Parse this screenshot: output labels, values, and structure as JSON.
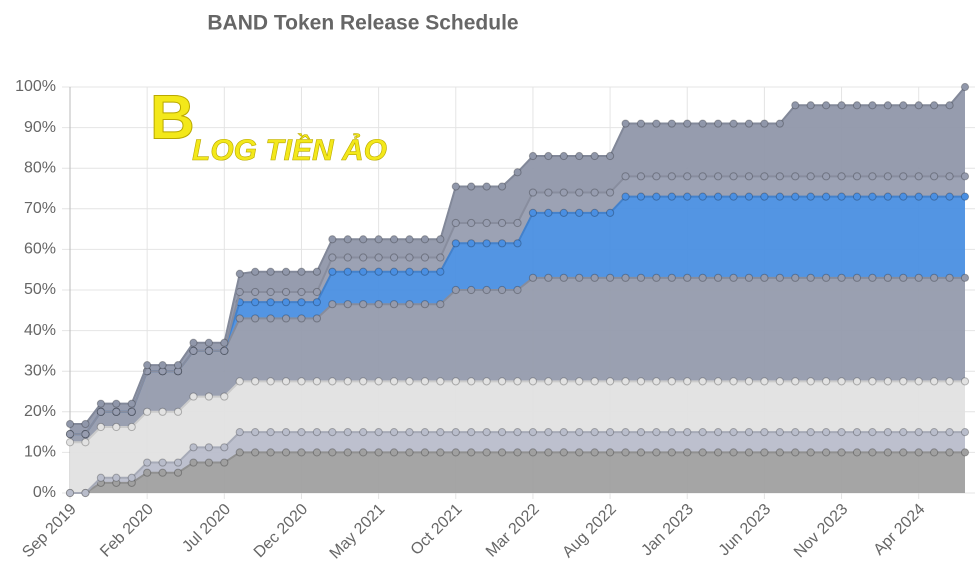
{
  "chart_data": {
    "type": "stacked-area",
    "title": "BAND Token Release Schedule",
    "watermark": "LOG TIỀN ẢO",
    "categories": [
      "Sep 2019",
      null,
      null,
      null,
      null,
      "Feb 2020",
      null,
      null,
      null,
      null,
      "Jul 2020",
      null,
      null,
      null,
      null,
      "Dec 2020",
      null,
      null,
      null,
      null,
      "May 2021",
      null,
      null,
      null,
      null,
      "Oct 2021",
      null,
      null,
      null,
      null,
      "Mar 2022",
      null,
      null,
      null,
      null,
      "Aug 2022",
      null,
      null,
      null,
      null,
      "Jan 2023",
      null,
      null,
      null,
      null,
      "Jun 2023",
      null,
      null,
      null,
      null,
      "Nov 2023",
      null,
      null,
      null,
      null,
      "Apr 2024",
      null,
      null,
      null
    ],
    "ylim": [
      0,
      100
    ],
    "yticks": [
      {
        "value": 0,
        "label": "0%"
      },
      {
        "value": 10,
        "label": "10%"
      },
      {
        "value": 20,
        "label": "20%"
      },
      {
        "value": 30,
        "label": "30%"
      },
      {
        "value": 40,
        "label": "40%"
      },
      {
        "value": 50,
        "label": "50%"
      },
      {
        "value": 60,
        "label": "60%"
      },
      {
        "value": 70,
        "label": "70%"
      },
      {
        "value": 80,
        "label": "80%"
      },
      {
        "value": 90,
        "label": "90%"
      },
      {
        "value": 100,
        "label": "100%"
      }
    ],
    "grid": true,
    "series": [
      {
        "color": "#a0a0a0",
        "values": [
          0,
          0,
          2.5,
          2.5,
          2.5,
          5,
          5,
          5,
          7.5,
          7.5,
          7.5,
          10,
          10,
          10,
          10,
          10,
          10,
          10,
          10,
          10,
          10,
          10,
          10,
          10,
          10,
          10,
          10,
          10,
          10,
          10,
          10,
          10,
          10,
          10,
          10,
          10,
          10,
          10,
          10,
          10,
          10,
          10,
          10,
          10,
          10,
          10,
          10,
          10,
          10,
          10,
          10,
          10,
          10,
          10,
          10,
          10,
          10,
          10,
          10
        ]
      },
      {
        "color": "#b9bdcb",
        "values": [
          0,
          0,
          1.25,
          1.25,
          1.25,
          2.5,
          2.5,
          2.5,
          3.75,
          3.75,
          3.75,
          5,
          5,
          5,
          5,
          5,
          5,
          5,
          5,
          5,
          5,
          5,
          5,
          5,
          5,
          5,
          5,
          5,
          5,
          5,
          5,
          5,
          5,
          5,
          5,
          5,
          5,
          5,
          5,
          5,
          5,
          5,
          5,
          5,
          5,
          5,
          5,
          5,
          5,
          5,
          5,
          5,
          5,
          5,
          5,
          5,
          5,
          5,
          5
        ]
      },
      {
        "color": "#e2e2e2",
        "values": [
          12.5,
          12.5,
          12.5,
          12.5,
          12.5,
          12.5,
          12.5,
          12.5,
          12.5,
          12.5,
          12.5,
          12.5,
          12.5,
          12.5,
          12.5,
          12.5,
          12.5,
          12.5,
          12.5,
          12.5,
          12.5,
          12.5,
          12.5,
          12.5,
          12.5,
          12.5,
          12.5,
          12.5,
          12.5,
          12.5,
          12.5,
          12.5,
          12.5,
          12.5,
          12.5,
          12.5,
          12.5,
          12.5,
          12.5,
          12.5,
          12.5,
          12.5,
          12.5,
          12.5,
          12.5,
          12.5,
          12.5,
          12.5,
          12.5,
          12.5,
          12.5,
          12.5,
          12.5,
          12.5,
          12.5,
          12.5,
          12.5,
          12.5,
          12.5
        ]
      },
      {
        "color": "#959bad",
        "values": [
          2,
          2,
          3.75,
          3.75,
          3.75,
          10,
          10,
          10,
          11.25,
          11.25,
          11.25,
          15.5,
          15.5,
          15.5,
          15.5,
          15.5,
          15.5,
          19,
          19,
          19,
          19,
          19,
          19,
          19,
          19,
          22.5,
          22.5,
          22.5,
          22.5,
          22.5,
          25.5,
          25.5,
          25.5,
          25.5,
          25.5,
          25.5,
          25.5,
          25.5,
          25.5,
          25.5,
          25.5,
          25.5,
          25.5,
          25.5,
          25.5,
          25.5,
          25.5,
          25.5,
          25.5,
          25.5,
          25.5,
          25.5,
          25.5,
          25.5,
          25.5,
          25.5,
          25.5,
          25.5,
          25.5
        ]
      },
      {
        "color": "#4a8fe2",
        "values": [
          0,
          0,
          0,
          0,
          0,
          0,
          0,
          0,
          0,
          0,
          0,
          4,
          4,
          4,
          4,
          4,
          4,
          8,
          8,
          8,
          8,
          8,
          8,
          8,
          8,
          11.5,
          11.5,
          11.5,
          11.5,
          11.5,
          16,
          16,
          16,
          16,
          16,
          16,
          20,
          20,
          20,
          20,
          20,
          20,
          20,
          20,
          20,
          20,
          20,
          20,
          20,
          20,
          20,
          20,
          20,
          20,
          20,
          20,
          20,
          20,
          20
        ]
      },
      {
        "color": "#979db0",
        "values": [
          0,
          0,
          0,
          0,
          0,
          0,
          0,
          0,
          0,
          0,
          0,
          2.5,
          2.5,
          2.5,
          2.5,
          2.5,
          2.5,
          3.5,
          3.5,
          3.5,
          3.5,
          3.5,
          3.5,
          3.5,
          3.5,
          5,
          5,
          5,
          5,
          5,
          5,
          5,
          5,
          5,
          5,
          5,
          5,
          5,
          5,
          5,
          5,
          5,
          5,
          5,
          5,
          5,
          5,
          5,
          5,
          5,
          5,
          5,
          5,
          5,
          5,
          5,
          5,
          5,
          5
        ]
      },
      {
        "color": "#9097aa",
        "values": [
          2.5,
          2.5,
          2,
          2,
          2,
          1.5,
          1.5,
          1.5,
          2,
          2,
          2,
          4.5,
          5,
          5,
          5,
          5,
          5,
          4.5,
          4.5,
          4.5,
          4.5,
          4.5,
          4.5,
          4.5,
          4.5,
          9,
          9,
          9,
          9,
          12.5,
          9,
          9,
          9,
          9,
          9,
          9,
          13,
          13,
          13,
          13,
          13,
          13,
          13,
          13,
          13,
          13,
          13,
          17.5,
          17.5,
          17.5,
          17.5,
          17.5,
          17.5,
          17.5,
          17.5,
          17.5,
          17.5,
          17.5,
          22
        ]
      }
    ]
  }
}
